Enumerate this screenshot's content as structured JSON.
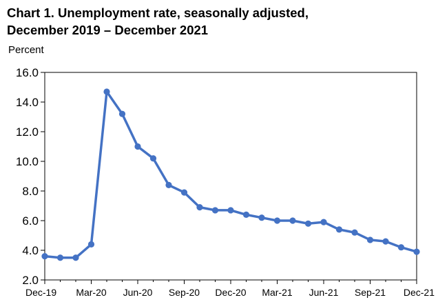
{
  "chart_data": {
    "type": "line",
    "title_line1": "Chart 1. Unemployment rate, seasonally adjusted,",
    "title_line2": "December 2019 – December 2021",
    "ylabel": "Percent",
    "xlabel": "",
    "ylim": [
      2.0,
      16.0
    ],
    "yticks": [
      "2.0",
      "4.0",
      "6.0",
      "8.0",
      "10.0",
      "12.0",
      "14.0",
      "16.0"
    ],
    "xtick_labels": [
      "Dec-19",
      "Mar-20",
      "Jun-20",
      "Sep-20",
      "Dec-20",
      "Mar-21",
      "Jun-21",
      "Sep-21",
      "Dec-21"
    ],
    "x": [
      "Dec-19",
      "Jan-20",
      "Feb-20",
      "Mar-20",
      "Apr-20",
      "May-20",
      "Jun-20",
      "Jul-20",
      "Aug-20",
      "Sep-20",
      "Oct-20",
      "Nov-20",
      "Dec-20",
      "Jan-21",
      "Feb-21",
      "Mar-21",
      "Apr-21",
      "May-21",
      "Jun-21",
      "Jul-21",
      "Aug-21",
      "Sep-21",
      "Oct-21",
      "Nov-21",
      "Dec-21"
    ],
    "series": [
      {
        "values": [
          3.6,
          3.5,
          3.5,
          4.4,
          14.7,
          13.2,
          11.0,
          10.2,
          8.4,
          7.9,
          6.9,
          6.7,
          6.7,
          6.4,
          6.2,
          6.0,
          6.0,
          5.8,
          5.9,
          5.4,
          5.2,
          4.7,
          4.6,
          4.2,
          3.9
        ],
        "color": "#4472C4"
      }
    ],
    "grid": false,
    "legend": "none"
  }
}
